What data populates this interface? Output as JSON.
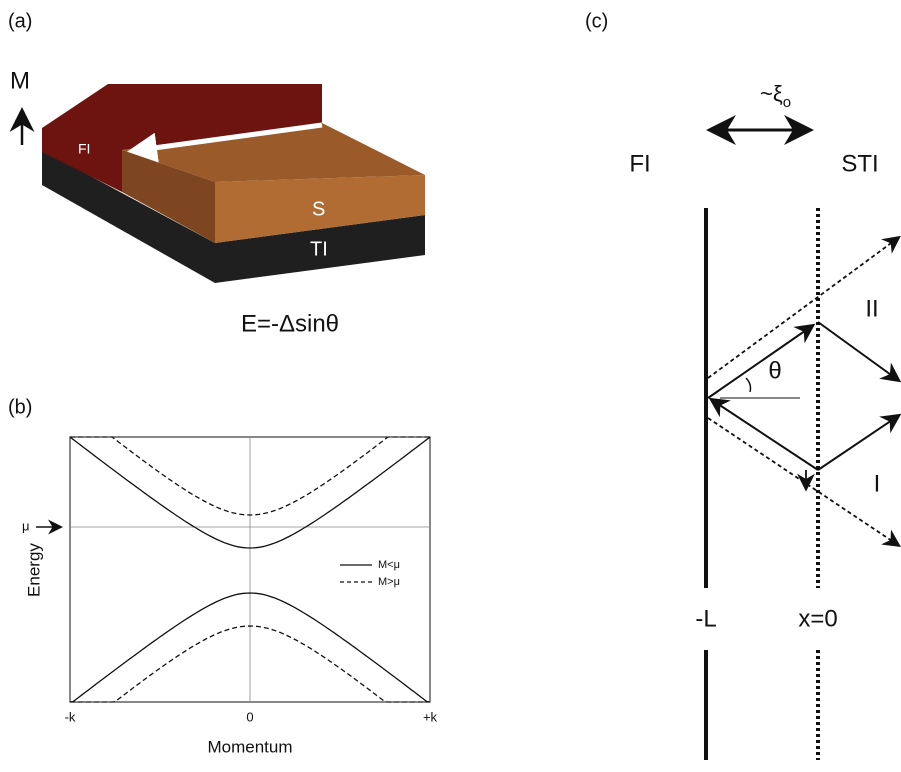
{
  "panel_a": {
    "label": "(a)",
    "magnetization": "M",
    "layer_fi": "FI",
    "layer_s": "S",
    "layer_ti": "TI",
    "equation": "E=-Δsinθ"
  },
  "panel_b": {
    "label": "(b)",
    "y_axis_label": "Energy",
    "x_axis_label": "Momentum",
    "mu_marker": "μ",
    "x_tick_labels": [
      "-k",
      "0",
      "+k"
    ],
    "legend": [
      "M<μ",
      "M>μ"
    ]
  },
  "panel_c": {
    "label": "(c)",
    "coherence_length": "~ξ",
    "coherence_subscript": "o",
    "left_region": "FI",
    "right_region": "STI",
    "left_boundary": "-L",
    "right_boundary": "x=0",
    "angle": "θ",
    "upper_path": "II",
    "lower_path": "I"
  }
}
